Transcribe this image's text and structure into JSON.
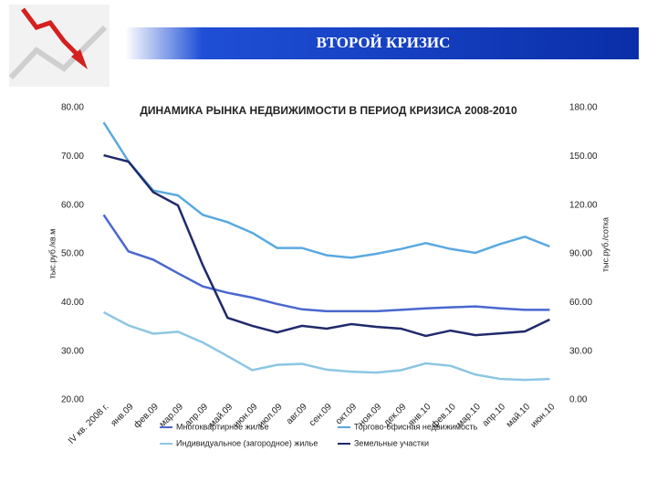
{
  "slide_title": "ВТОРОЙ КРИЗИС",
  "chart_data": {
    "type": "line",
    "title": "ДИНАМИКА РЫНКА НЕДВИЖИМОСТИ В ПЕРИОД КРИЗИСА 2008-2010",
    "y_label": "тыс.руб./кв.м",
    "y2_label": "тыс.руб./сотка",
    "categories": [
      "IV кв. 2008 г.",
      "янв.09",
      "фев.09",
      "мар.09",
      "апр.09",
      "май.09",
      "июн.09",
      "июл.09",
      "авг.09",
      "сен.09",
      "окт.09",
      "ноя.09",
      "дек.09",
      "янв.10",
      "фев.10",
      "мар.10",
      "апр.10",
      "май.10",
      "июн.10"
    ],
    "series": [
      {
        "name": "Многоквартирное жилье",
        "color": "#4a67cf",
        "values": [
          58,
          50.5,
          48.8,
          46,
          43.3,
          42,
          41,
          39.7,
          38.6,
          38.2,
          38.2,
          38.2,
          38.5,
          38.8,
          39,
          39.2,
          38.8,
          38.5,
          38.5
        ]
      },
      {
        "name": "Торгово-офисная недвижимость",
        "color": "#5aa9e0",
        "values": [
          77,
          69,
          63,
          62,
          58,
          56.5,
          54.3,
          51.2,
          51.2,
          49.7,
          49.2,
          50,
          51,
          52.2,
          51,
          50.2,
          52,
          53.5,
          51.5
        ]
      },
      {
        "name": "Индивидуальное (загородное) жилье",
        "color": "#8cc6e4",
        "values": [
          38,
          35.3,
          33.6,
          34,
          31.8,
          29,
          26.1,
          27.2,
          27.4,
          26.2,
          25.8,
          25.6,
          26.1,
          27.5,
          27,
          25.2,
          24.3,
          24.1,
          24.3
        ]
      },
      {
        "name": "Земельные участки",
        "color": "#1f2a6b",
        "axis": "y2",
        "values": [
          150.7,
          146.8,
          128,
          119.8,
          83,
          50.6,
          45.6,
          41.6,
          45.6,
          43.9,
          46.7,
          45,
          43.9,
          39.4,
          42.7,
          39.9,
          41,
          42.2,
          49.5
        ]
      }
    ],
    "ylim": [
      20,
      80
    ],
    "yticks": [
      {
        "value": 20,
        "label": "20.00"
      },
      {
        "value": 30,
        "label": "30.00"
      },
      {
        "value": 40,
        "label": "40.00"
      },
      {
        "value": 50,
        "label": "50.00"
      },
      {
        "value": 60,
        "label": "60.00"
      },
      {
        "value": 70,
        "label": "70.00"
      },
      {
        "value": 80,
        "label": "80.00"
      }
    ],
    "y2lim": [
      0,
      180
    ],
    "y2ticks": [
      {
        "value": 0,
        "label": "0.00"
      },
      {
        "value": 30,
        "label": "30.00"
      },
      {
        "value": 60,
        "label": "60.00"
      },
      {
        "value": 90,
        "label": "90.00"
      },
      {
        "value": 120,
        "label": "120.00"
      },
      {
        "value": 150,
        "label": "150.00"
      },
      {
        "value": 180,
        "label": "180.00"
      }
    ],
    "grid": false
  }
}
